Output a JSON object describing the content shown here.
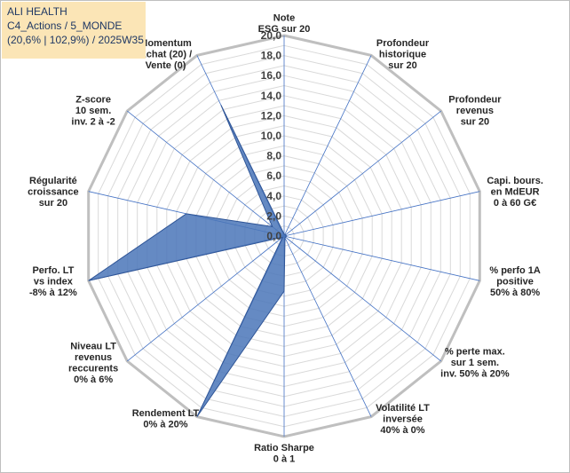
{
  "info_box": {
    "line1": "ALI HEALTH",
    "line2": "C4_Actions / 5_MONDE",
    "line3": "(20,6% | 102,9%) / 2025W35"
  },
  "colors": {
    "area_fill": "#4a76b8",
    "area_stroke": "#2f5597",
    "spoke": "#4472c4",
    "outer_grid": "#bfbfbf",
    "inner_grid": "#d9d9d9",
    "info_bg": "#fbe5b6",
    "info_text": "#1f3864"
  },
  "chart_data": {
    "type": "radar",
    "title": "",
    "rmin": 0,
    "rmax": 20,
    "major_step": 2,
    "minor_step": 1,
    "tick_labels": [
      "0,0",
      "2,0",
      "4,0",
      "6,0",
      "8,0",
      "10,0",
      "12,0",
      "14,0",
      "16,0",
      "18,0",
      "20,0"
    ],
    "grid": true,
    "categories": [
      [
        "Note",
        "ESG sur 20"
      ],
      [
        "Profondeur",
        "historique",
        "sur 20"
      ],
      [
        "Profondeur",
        "revenus",
        "sur 20"
      ],
      [
        "Capi. bours.",
        "en MdEUR",
        "0 à 60 G€"
      ],
      [
        "% perfo 1A",
        "positive",
        "50% à 80%"
      ],
      [
        "% perte max.",
        "sur 1 sem.",
        "inv. 50% à 20%"
      ],
      [
        "Volatilité LT",
        "inversée",
        "40% à 0%"
      ],
      [
        "Ratio Sharpe",
        "0 à 1"
      ],
      [
        "Rendement LT",
        "0% à 20%"
      ],
      [
        "Niveau LT",
        "revenus",
        "reccurents",
        "0% à 6%"
      ],
      [
        "Perfo. LT",
        "vs index",
        "-8% à 12%"
      ],
      [
        "Régularité",
        "croissance",
        "sur 20"
      ],
      [
        "Z-score",
        "10 sem.",
        "inv. 2 à -2"
      ],
      [
        "Momentum",
        "Achat (20) /",
        "Vente (0)"
      ]
    ],
    "series": [
      {
        "values": [
          0.2,
          0.2,
          0.2,
          0.2,
          0.2,
          0.2,
          0.2,
          5.5,
          20,
          0.2,
          20,
          10,
          1.5,
          14.5
        ]
      }
    ]
  }
}
